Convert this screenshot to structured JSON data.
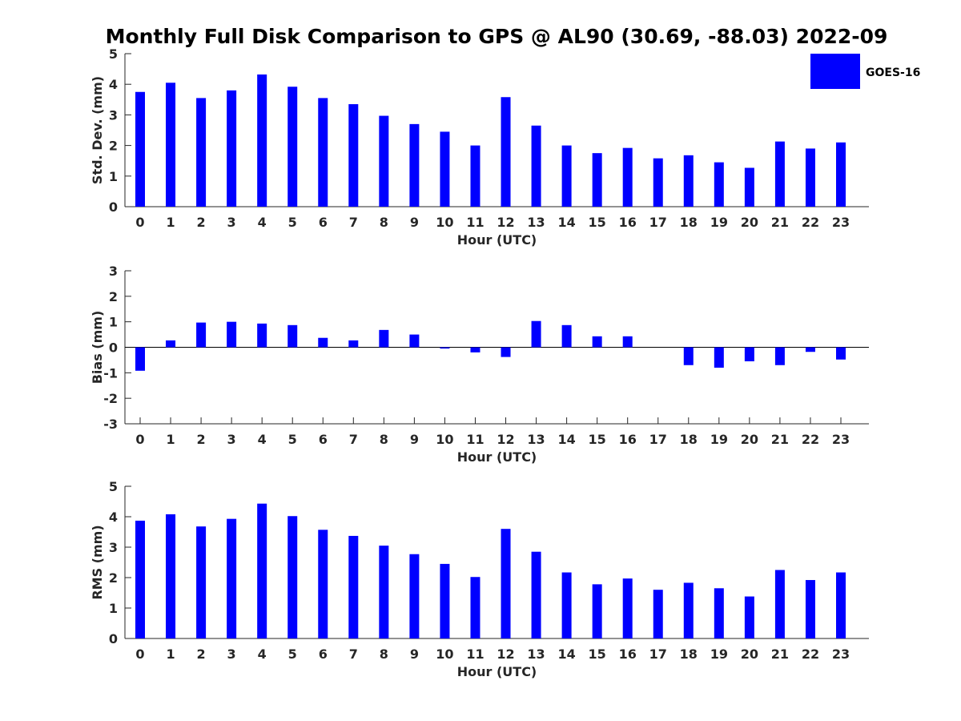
{
  "figure": {
    "title": "Monthly Full Disk Comparison to GPS @ AL90 (30.69, -88.03) 2022-09",
    "legend": {
      "label": "GOES-16",
      "color": "#0000ff",
      "placement": "top-right"
    }
  },
  "chart_data": [
    {
      "type": "bar",
      "title": "",
      "xlabel": "Hour (UTC)",
      "ylabel": "Std. Dev. (mm)",
      "categories": [
        "0",
        "1",
        "2",
        "3",
        "4",
        "5",
        "6",
        "7",
        "8",
        "9",
        "10",
        "11",
        "12",
        "13",
        "14",
        "15",
        "16",
        "17",
        "18",
        "19",
        "20",
        "21",
        "22",
        "23"
      ],
      "ylim": [
        0,
        5
      ],
      "yticks": [
        "0",
        "1",
        "2",
        "3",
        "4",
        "5"
      ],
      "grid": false,
      "series": [
        {
          "name": "GOES-16",
          "color": "#0000ff",
          "values": [
            3.75,
            4.05,
            3.55,
            3.8,
            4.32,
            3.92,
            3.55,
            3.35,
            2.97,
            2.7,
            2.45,
            2.0,
            3.58,
            2.65,
            2.0,
            1.75,
            1.92,
            1.58,
            1.68,
            1.45,
            1.27,
            2.13,
            1.9,
            2.1
          ]
        }
      ]
    },
    {
      "type": "bar",
      "title": "",
      "xlabel": "Hour (UTC)",
      "ylabel": "Bias (mm)",
      "categories": [
        "0",
        "1",
        "2",
        "3",
        "4",
        "5",
        "6",
        "7",
        "8",
        "9",
        "10",
        "11",
        "12",
        "13",
        "14",
        "15",
        "16",
        "17",
        "18",
        "19",
        "20",
        "21",
        "22",
        "23"
      ],
      "ylim": [
        -3,
        3
      ],
      "yticks": [
        "-3",
        "-2",
        "-1",
        "0",
        "1",
        "2",
        "3"
      ],
      "zero_line": true,
      "grid": false,
      "series": [
        {
          "name": "GOES-16",
          "color": "#0000ff",
          "values": [
            -0.92,
            0.27,
            0.97,
            1.0,
            0.93,
            0.87,
            0.37,
            0.27,
            0.68,
            0.5,
            -0.05,
            -0.2,
            -0.38,
            1.03,
            0.87,
            0.43,
            0.43,
            0.0,
            -0.7,
            -0.8,
            -0.55,
            -0.7,
            -0.18,
            -0.48
          ]
        }
      ]
    },
    {
      "type": "bar",
      "title": "",
      "xlabel": "Hour (UTC)",
      "ylabel": "RMS (mm)",
      "categories": [
        "0",
        "1",
        "2",
        "3",
        "4",
        "5",
        "6",
        "7",
        "8",
        "9",
        "10",
        "11",
        "12",
        "13",
        "14",
        "15",
        "16",
        "17",
        "18",
        "19",
        "20",
        "21",
        "22",
        "23"
      ],
      "ylim": [
        0,
        5
      ],
      "yticks": [
        "0",
        "1",
        "2",
        "3",
        "4",
        "5"
      ],
      "grid": false,
      "series": [
        {
          "name": "GOES-16",
          "color": "#0000ff",
          "values": [
            3.87,
            4.08,
            3.68,
            3.93,
            4.43,
            4.02,
            3.57,
            3.37,
            3.05,
            2.77,
            2.45,
            2.02,
            3.6,
            2.85,
            2.17,
            1.78,
            1.97,
            1.6,
            1.83,
            1.65,
            1.38,
            2.25,
            1.92,
            2.17
          ]
        }
      ]
    }
  ]
}
